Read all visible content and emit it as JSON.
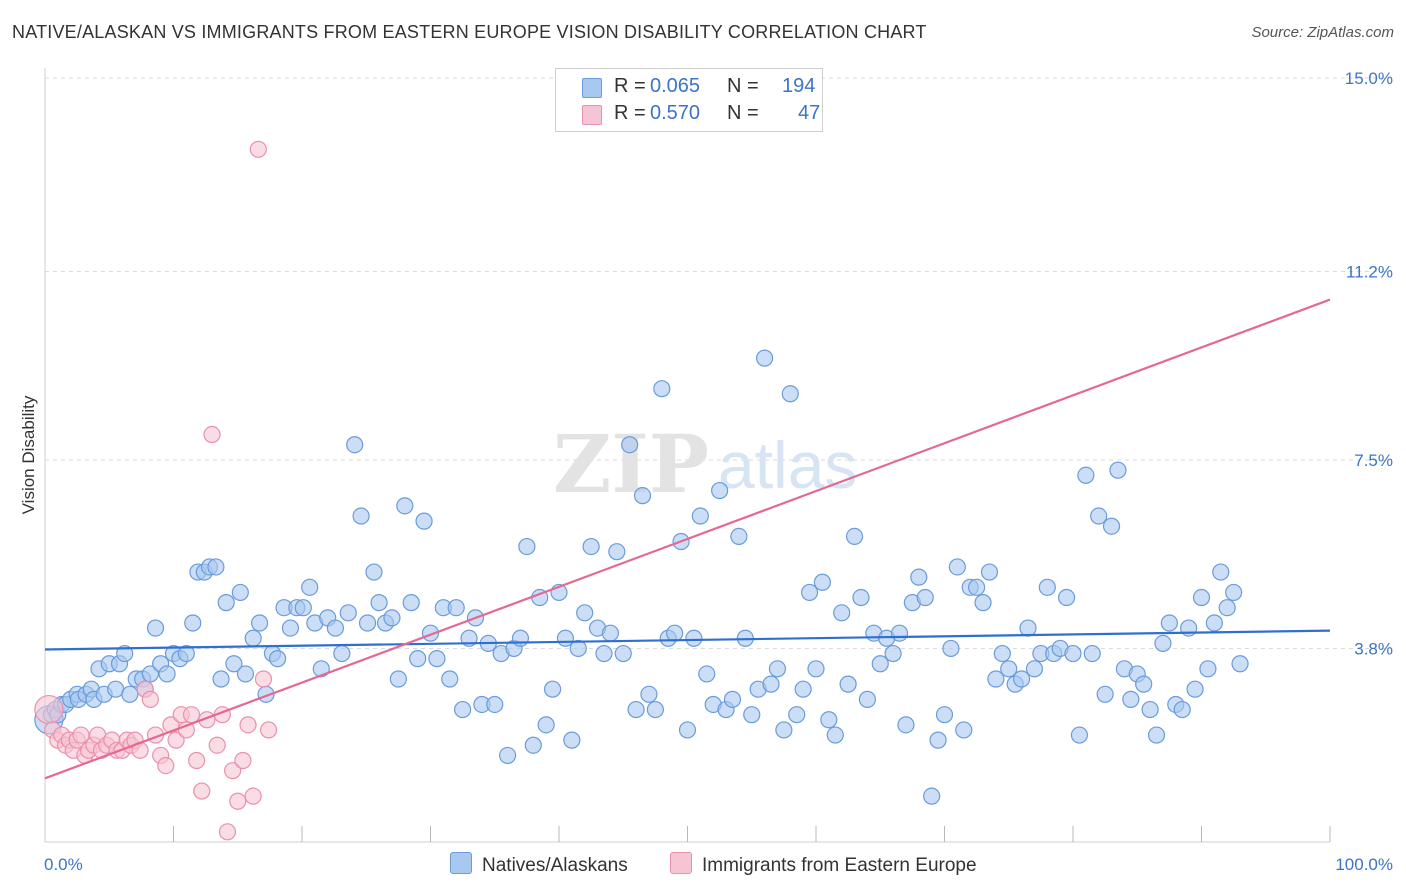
{
  "title": "NATIVE/ALASKAN VS IMMIGRANTS FROM EASTERN EUROPE VISION DISABILITY CORRELATION CHART",
  "source": "Source: ZipAtlas.com",
  "watermark": {
    "zip": "ZIP",
    "atlas": "atlas"
  },
  "colors": {
    "blue_fill": "#a9c8ef",
    "blue_stroke": "#6a9bdc",
    "blue_line": "#2f6fd0",
    "pink_fill": "#f6c5d4",
    "pink_stroke": "#ec8fac",
    "pink_line": "#e36993",
    "label_blue": "#3b74c8",
    "grid": "#d9d9d9"
  },
  "legend": {
    "rows": [
      {
        "r_label": "R =",
        "r_value": "0.065",
        "n_label": "N =",
        "n_value": "194"
      },
      {
        "r_label": "R =",
        "r_value": "0.570",
        "n_label": "N =",
        "n_value": "47"
      }
    ],
    "series_labels": [
      "Natives/Alaskans",
      "Immigrants from Eastern Europe"
    ]
  },
  "chart_data": {
    "type": "scatter",
    "title": "NATIVE/ALASKAN VS IMMIGRANTS FROM EASTERN EUROPE VISION DISABILITY CORRELATION CHART",
    "xlabel": "",
    "ylabel": "Vision Disability",
    "xlim": [
      0,
      100
    ],
    "ylim": [
      0,
      15
    ],
    "x_tick_labels": [
      {
        "value": 0,
        "label": "0.0%"
      },
      {
        "value": 100,
        "label": "100.0%"
      }
    ],
    "y_tick_labels": [
      {
        "value": 3.8,
        "label": "3.8%"
      },
      {
        "value": 7.5,
        "label": "7.5%"
      },
      {
        "value": 11.2,
        "label": "11.2%"
      },
      {
        "value": 15.0,
        "label": "15.0%"
      }
    ],
    "x_minor_ticks": [
      10,
      20,
      30,
      40,
      50,
      60,
      70,
      80,
      90,
      100
    ],
    "series": [
      {
        "name": "Natives/Alaskans",
        "trend": {
          "x": [
            0,
            100
          ],
          "y": [
            3.78,
            4.15
          ]
        },
        "points": [
          [
            0.3,
            2.4
          ],
          [
            0.5,
            2.5
          ],
          [
            0.8,
            2.6
          ],
          [
            1.0,
            2.5
          ],
          [
            1.3,
            2.7
          ],
          [
            1.6,
            2.7
          ],
          [
            2.0,
            2.8
          ],
          [
            2.5,
            2.9
          ],
          [
            2.6,
            2.8
          ],
          [
            3.2,
            2.9
          ],
          [
            3.6,
            3.0
          ],
          [
            3.8,
            2.8
          ],
          [
            4.2,
            3.4
          ],
          [
            4.6,
            2.9
          ],
          [
            5.0,
            3.5
          ],
          [
            5.5,
            3.0
          ],
          [
            5.8,
            3.5
          ],
          [
            6.2,
            3.7
          ],
          [
            6.6,
            2.9
          ],
          [
            7.1,
            3.2
          ],
          [
            7.6,
            3.2
          ],
          [
            7.8,
            3.0
          ],
          [
            8.2,
            3.3
          ],
          [
            8.6,
            4.2
          ],
          [
            9.0,
            3.5
          ],
          [
            9.5,
            3.3
          ],
          [
            10.0,
            3.7
          ],
          [
            10.5,
            3.6
          ],
          [
            11.0,
            3.7
          ],
          [
            11.5,
            4.3
          ],
          [
            11.9,
            5.3
          ],
          [
            12.4,
            5.3
          ],
          [
            12.8,
            5.4
          ],
          [
            13.3,
            5.4
          ],
          [
            13.7,
            3.2
          ],
          [
            14.1,
            4.7
          ],
          [
            14.7,
            3.5
          ],
          [
            15.2,
            4.9
          ],
          [
            15.6,
            3.3
          ],
          [
            16.2,
            4.0
          ],
          [
            16.7,
            4.3
          ],
          [
            17.2,
            2.9
          ],
          [
            17.7,
            3.7
          ],
          [
            18.1,
            3.6
          ],
          [
            18.6,
            4.6
          ],
          [
            19.1,
            4.2
          ],
          [
            19.6,
            4.6
          ],
          [
            20.1,
            4.6
          ],
          [
            20.6,
            5.0
          ],
          [
            21.0,
            4.3
          ],
          [
            21.5,
            3.4
          ],
          [
            22.0,
            4.4
          ],
          [
            22.6,
            4.2
          ],
          [
            23.1,
            3.7
          ],
          [
            23.6,
            4.5
          ],
          [
            24.1,
            7.8
          ],
          [
            24.6,
            6.4
          ],
          [
            25.1,
            4.3
          ],
          [
            25.6,
            5.3
          ],
          [
            26.0,
            4.7
          ],
          [
            26.5,
            4.3
          ],
          [
            27.0,
            4.4
          ],
          [
            27.5,
            3.2
          ],
          [
            28.0,
            6.6
          ],
          [
            28.5,
            4.7
          ],
          [
            29.0,
            3.6
          ],
          [
            29.5,
            6.3
          ],
          [
            30.0,
            4.1
          ],
          [
            30.5,
            3.6
          ],
          [
            31.0,
            4.6
          ],
          [
            31.5,
            3.2
          ],
          [
            32.0,
            4.6
          ],
          [
            32.5,
            2.6
          ],
          [
            33.0,
            4.0
          ],
          [
            33.5,
            4.4
          ],
          [
            34.0,
            2.7
          ],
          [
            34.5,
            3.9
          ],
          [
            35.0,
            2.7
          ],
          [
            35.5,
            3.7
          ],
          [
            36.0,
            1.7
          ],
          [
            36.5,
            3.8
          ],
          [
            37.0,
            4.0
          ],
          [
            37.5,
            5.8
          ],
          [
            38.0,
            1.9
          ],
          [
            38.5,
            4.8
          ],
          [
            39.0,
            2.3
          ],
          [
            39.5,
            3.0
          ],
          [
            40.0,
            4.9
          ],
          [
            40.5,
            4.0
          ],
          [
            41.0,
            2.0
          ],
          [
            41.5,
            3.8
          ],
          [
            42.0,
            4.5
          ],
          [
            42.5,
            5.8
          ],
          [
            43.0,
            4.2
          ],
          [
            43.5,
            3.7
          ],
          [
            44.0,
            4.1
          ],
          [
            44.5,
            5.7
          ],
          [
            45.0,
            3.7
          ],
          [
            45.5,
            7.8
          ],
          [
            46.0,
            2.6
          ],
          [
            46.5,
            6.8
          ],
          [
            47.0,
            2.9
          ],
          [
            47.5,
            2.6
          ],
          [
            48.0,
            8.9
          ],
          [
            48.5,
            4.0
          ],
          [
            49.0,
            4.1
          ],
          [
            49.5,
            5.9
          ],
          [
            50.0,
            2.2
          ],
          [
            50.5,
            4.0
          ],
          [
            51.0,
            6.4
          ],
          [
            51.5,
            3.3
          ],
          [
            52.0,
            2.7
          ],
          [
            52.5,
            6.9
          ],
          [
            53.0,
            2.6
          ],
          [
            53.5,
            2.8
          ],
          [
            54.0,
            6.0
          ],
          [
            54.5,
            4.0
          ],
          [
            55.0,
            2.5
          ],
          [
            55.5,
            3.0
          ],
          [
            56.0,
            9.5
          ],
          [
            56.5,
            3.1
          ],
          [
            57.0,
            3.4
          ],
          [
            57.5,
            2.2
          ],
          [
            58.0,
            8.8
          ],
          [
            58.5,
            2.5
          ],
          [
            59.0,
            3.0
          ],
          [
            59.5,
            4.9
          ],
          [
            60.0,
            3.4
          ],
          [
            60.5,
            5.1
          ],
          [
            61.0,
            2.4
          ],
          [
            61.5,
            2.1
          ],
          [
            62.0,
            4.5
          ],
          [
            62.5,
            3.1
          ],
          [
            63.0,
            6.0
          ],
          [
            63.5,
            4.8
          ],
          [
            64.0,
            2.8
          ],
          [
            64.5,
            4.1
          ],
          [
            65.0,
            3.5
          ],
          [
            65.5,
            4.0
          ],
          [
            66.0,
            3.7
          ],
          [
            66.5,
            4.1
          ],
          [
            67.0,
            2.3
          ],
          [
            67.5,
            4.7
          ],
          [
            68.0,
            5.2
          ],
          [
            68.5,
            4.8
          ],
          [
            69.0,
            0.9
          ],
          [
            69.5,
            2.0
          ],
          [
            70.0,
            2.5
          ],
          [
            70.5,
            3.8
          ],
          [
            71.0,
            5.4
          ],
          [
            71.5,
            2.2
          ],
          [
            72.0,
            5.0
          ],
          [
            72.5,
            5.0
          ],
          [
            73.0,
            4.7
          ],
          [
            73.5,
            5.3
          ],
          [
            74.0,
            3.2
          ],
          [
            74.5,
            3.7
          ],
          [
            75.0,
            3.4
          ],
          [
            75.5,
            3.1
          ],
          [
            76.0,
            3.2
          ],
          [
            76.5,
            4.2
          ],
          [
            77.0,
            3.4
          ],
          [
            77.5,
            3.7
          ],
          [
            78.0,
            5.0
          ],
          [
            78.5,
            3.7
          ],
          [
            79.0,
            3.8
          ],
          [
            79.5,
            4.8
          ],
          [
            80.0,
            3.7
          ],
          [
            80.5,
            2.1
          ],
          [
            81.0,
            7.2
          ],
          [
            81.5,
            3.7
          ],
          [
            82.0,
            6.4
          ],
          [
            82.5,
            2.9
          ],
          [
            83.0,
            6.2
          ],
          [
            83.5,
            7.3
          ],
          [
            84.0,
            3.4
          ],
          [
            84.5,
            2.8
          ],
          [
            85.0,
            3.3
          ],
          [
            85.5,
            3.1
          ],
          [
            86.0,
            2.6
          ],
          [
            86.5,
            2.1
          ],
          [
            87.0,
            3.9
          ],
          [
            87.5,
            4.3
          ],
          [
            88.0,
            2.7
          ],
          [
            88.5,
            2.6
          ],
          [
            89.0,
            4.2
          ],
          [
            89.5,
            3.0
          ],
          [
            90.0,
            4.8
          ],
          [
            90.5,
            3.4
          ],
          [
            91.0,
            4.3
          ],
          [
            91.5,
            5.3
          ],
          [
            92.0,
            4.6
          ],
          [
            92.5,
            4.9
          ],
          [
            93.0,
            3.5
          ]
        ]
      },
      {
        "name": "Immigrants from Eastern Europe",
        "trend": {
          "x": [
            0,
            100
          ],
          "y": [
            1.25,
            10.65
          ]
        },
        "points": [
          [
            0.3,
            2.6
          ],
          [
            0.6,
            2.2
          ],
          [
            1.0,
            2.0
          ],
          [
            1.3,
            2.1
          ],
          [
            1.6,
            1.9
          ],
          [
            1.9,
            2.0
          ],
          [
            2.2,
            1.8
          ],
          [
            2.5,
            2.0
          ],
          [
            2.8,
            2.1
          ],
          [
            3.1,
            1.7
          ],
          [
            3.4,
            1.8
          ],
          [
            3.8,
            1.9
          ],
          [
            4.1,
            2.1
          ],
          [
            4.4,
            1.8
          ],
          [
            4.8,
            1.9
          ],
          [
            5.2,
            2.0
          ],
          [
            5.6,
            1.8
          ],
          [
            6.0,
            1.8
          ],
          [
            6.4,
            2.0
          ],
          [
            6.7,
            1.9
          ],
          [
            7.0,
            2.0
          ],
          [
            7.4,
            1.8
          ],
          [
            7.8,
            3.0
          ],
          [
            8.2,
            2.8
          ],
          [
            8.6,
            2.1
          ],
          [
            9.0,
            1.7
          ],
          [
            9.4,
            1.5
          ],
          [
            9.8,
            2.3
          ],
          [
            10.2,
            2.0
          ],
          [
            10.6,
            2.5
          ],
          [
            11.0,
            2.2
          ],
          [
            11.4,
            2.5
          ],
          [
            11.8,
            1.6
          ],
          [
            12.2,
            1.0
          ],
          [
            12.6,
            2.4
          ],
          [
            13.0,
            8.0
          ],
          [
            13.4,
            1.9
          ],
          [
            13.8,
            2.5
          ],
          [
            14.2,
            0.2
          ],
          [
            14.6,
            1.4
          ],
          [
            15.0,
            0.8
          ],
          [
            15.4,
            1.6
          ],
          [
            15.8,
            2.3
          ],
          [
            16.2,
            0.9
          ],
          [
            16.6,
            13.6
          ],
          [
            17.0,
            3.2
          ],
          [
            17.4,
            2.2
          ]
        ]
      }
    ]
  }
}
